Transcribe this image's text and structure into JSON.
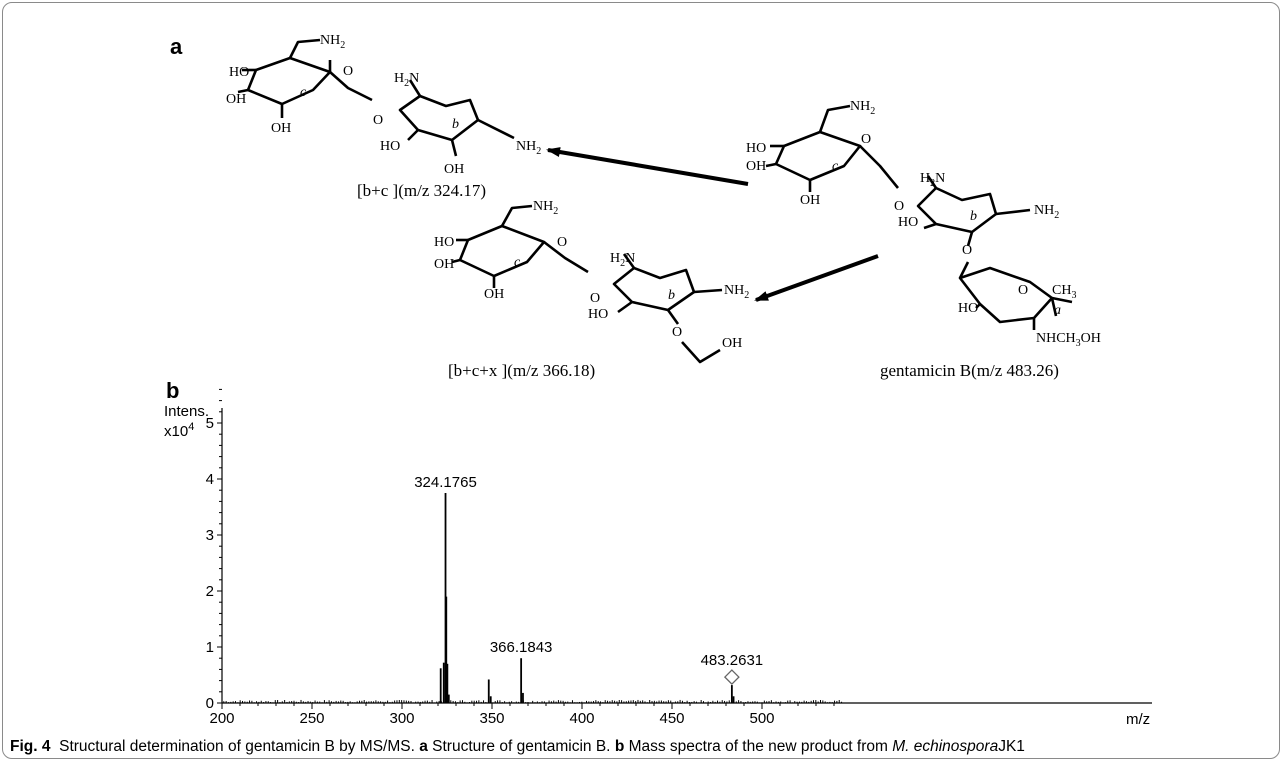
{
  "figure": {
    "panel_a_label": "a",
    "panel_b_label": "b",
    "caption": {
      "fig_label": "Fig. 4",
      "text1": "Structural determination of gentamicin B by MS/MS.",
      "a_label": "a",
      "text2": "Structure of gentamicin B.",
      "b_label": "b",
      "text3": "Mass spectra of the new product from",
      "organism": "M. echinospora",
      "strain": "JK1"
    }
  },
  "structures": {
    "parent": {
      "label": "gentamicin B(m/z 483.26)"
    },
    "fragment1": {
      "label": "[b+c ](m/z 324.17)"
    },
    "fragment2": {
      "label": "[b+c+x ](m/z 366.18)"
    },
    "atoms": {
      "nh2": "NH",
      "sub2": "2",
      "h2n_h": "H",
      "h2n_n": "N",
      "oh": "OH",
      "ho": "HO",
      "o": "O",
      "ring_a": "a",
      "ring_b": "b",
      "ring_c": "c",
      "ch3_c": "CH",
      "ch3_3": "3",
      "nhch3": "NHCH",
      "oh_tail": "OH"
    }
  },
  "chart_data": {
    "type": "bar",
    "title": "",
    "xlabel": "m/z",
    "ylabel": "Intens.",
    "y_multiplier": "x10",
    "y_exponent": "4",
    "xlim": [
      200,
      550
    ],
    "ylim": [
      0,
      5.8
    ],
    "x_ticks": [
      200,
      250,
      300,
      350,
      400,
      450,
      500
    ],
    "y_ticks": [
      0,
      1,
      2,
      3,
      4,
      5
    ],
    "peaks": [
      {
        "mz": 321.5,
        "intensity": 0.62
      },
      {
        "mz": 323.2,
        "intensity": 0.72
      },
      {
        "mz": 324.1765,
        "intensity": 3.75,
        "label": "324.1765"
      },
      {
        "mz": 324.6,
        "intensity": 1.9
      },
      {
        "mz": 325.2,
        "intensity": 0.7
      },
      {
        "mz": 326.0,
        "intensity": 0.15
      },
      {
        "mz": 348.2,
        "intensity": 0.42
      },
      {
        "mz": 349.3,
        "intensity": 0.12
      },
      {
        "mz": 366.1843,
        "intensity": 0.8,
        "label": "366.1843"
      },
      {
        "mz": 367.2,
        "intensity": 0.18
      },
      {
        "mz": 483.2631,
        "intensity": 0.32,
        "label": "483.2631",
        "marker": "diamond"
      },
      {
        "mz": 484.2,
        "intensity": 0.12
      }
    ]
  }
}
